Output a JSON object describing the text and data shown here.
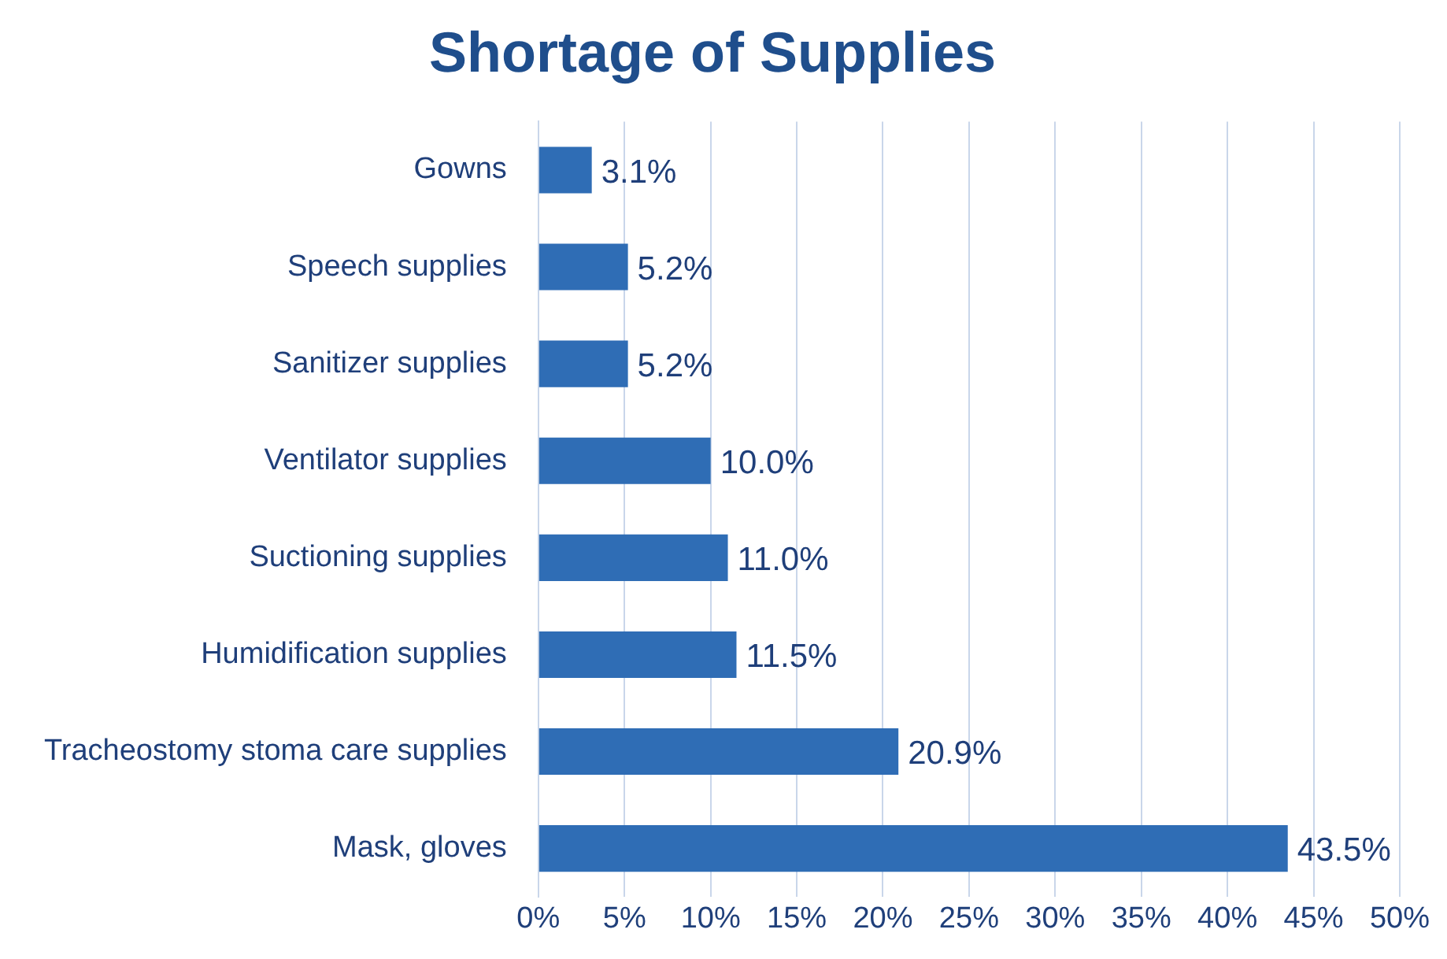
{
  "chart_data": {
    "type": "bar",
    "orientation": "horizontal",
    "title": "Shortage of Supplies",
    "categories": [
      "Gowns",
      "Speech supplies",
      "Sanitizer supplies",
      "Ventilator supplies",
      "Suctioning supplies",
      "Humidification supplies",
      "Tracheostomy stoma care supplies",
      "Mask, gloves"
    ],
    "values": [
      3.1,
      5.2,
      5.2,
      10.0,
      11.0,
      11.5,
      20.9,
      43.5
    ],
    "value_labels": [
      "3.1%",
      "5.2%",
      "5.2%",
      "10.0%",
      "11.0%",
      "11.5%",
      "20.9%",
      "43.5%"
    ],
    "color": "#2f6db5",
    "xlim": [
      0,
      50
    ],
    "xticks": [
      {
        "value": 0,
        "label": "0%"
      },
      {
        "value": 5,
        "label": "5%"
      },
      {
        "value": 10,
        "label": "10%"
      },
      {
        "value": 15,
        "label": "15%"
      },
      {
        "value": 20,
        "label": "20%"
      },
      {
        "value": 25,
        "label": "25%"
      },
      {
        "value": 30,
        "label": "30%"
      },
      {
        "value": 35,
        "label": "35%"
      },
      {
        "value": 40,
        "label": "40%"
      },
      {
        "value": 45,
        "label": "45%"
      },
      {
        "value": 50,
        "label": "50%"
      }
    ],
    "grid": "x",
    "legend": false
  }
}
